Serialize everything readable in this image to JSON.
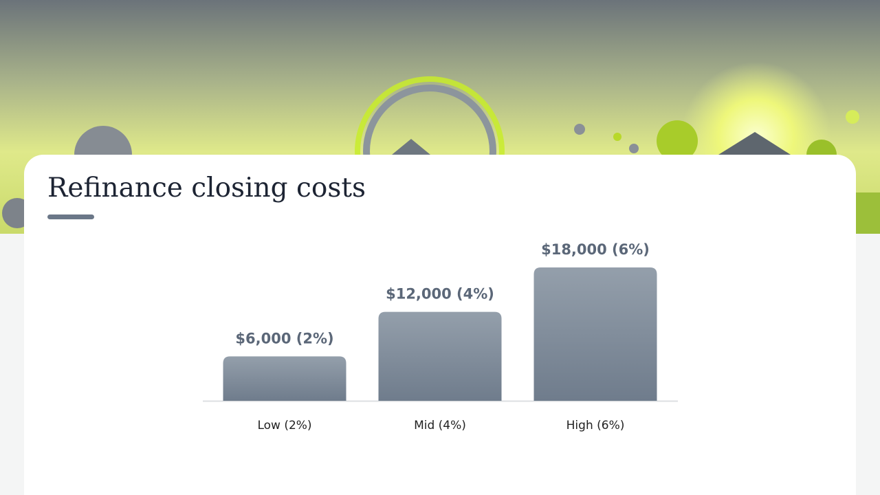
{
  "chart_data": {
    "type": "bar",
    "title": "Refinance closing costs",
    "categories": [
      "Low (2%)",
      "Mid (4%)",
      "High (6%)"
    ],
    "values": [
      6000,
      12000,
      18000
    ],
    "value_labels": [
      "$6,000 (2%)",
      "$12,000 (4%)",
      "$18,000 (6%)"
    ]
  }
}
